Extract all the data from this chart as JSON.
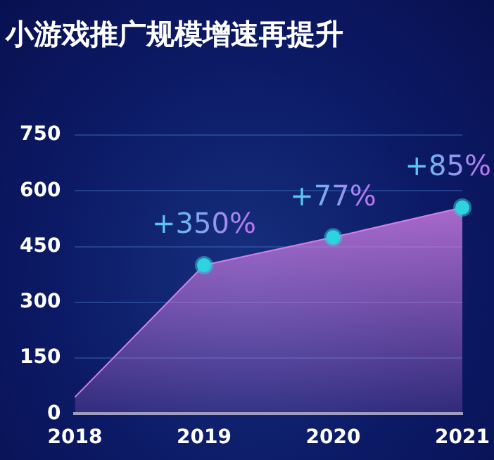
{
  "chart_data": {
    "type": "area",
    "title": "小游戏推广规模增速再提升",
    "categories": [
      "2018",
      "2019",
      "2020",
      "2021"
    ],
    "series": [
      {
        "color": "#d27ee6",
        "values": [
          45,
          400,
          475,
          555
        ]
      }
    ],
    "ylim": [
      0,
      750
    ],
    "yticks": [
      0,
      150,
      300,
      450,
      600,
      750
    ],
    "grid": "y",
    "legend": false,
    "marker": "circle",
    "annotations": [
      {
        "text": "+350%",
        "x": "2019",
        "y": 400
      },
      {
        "text": "+77%",
        "x": "2020",
        "y": 475
      },
      {
        "text": "+85%",
        "x": "2021",
        "y": 555
      }
    ]
  }
}
